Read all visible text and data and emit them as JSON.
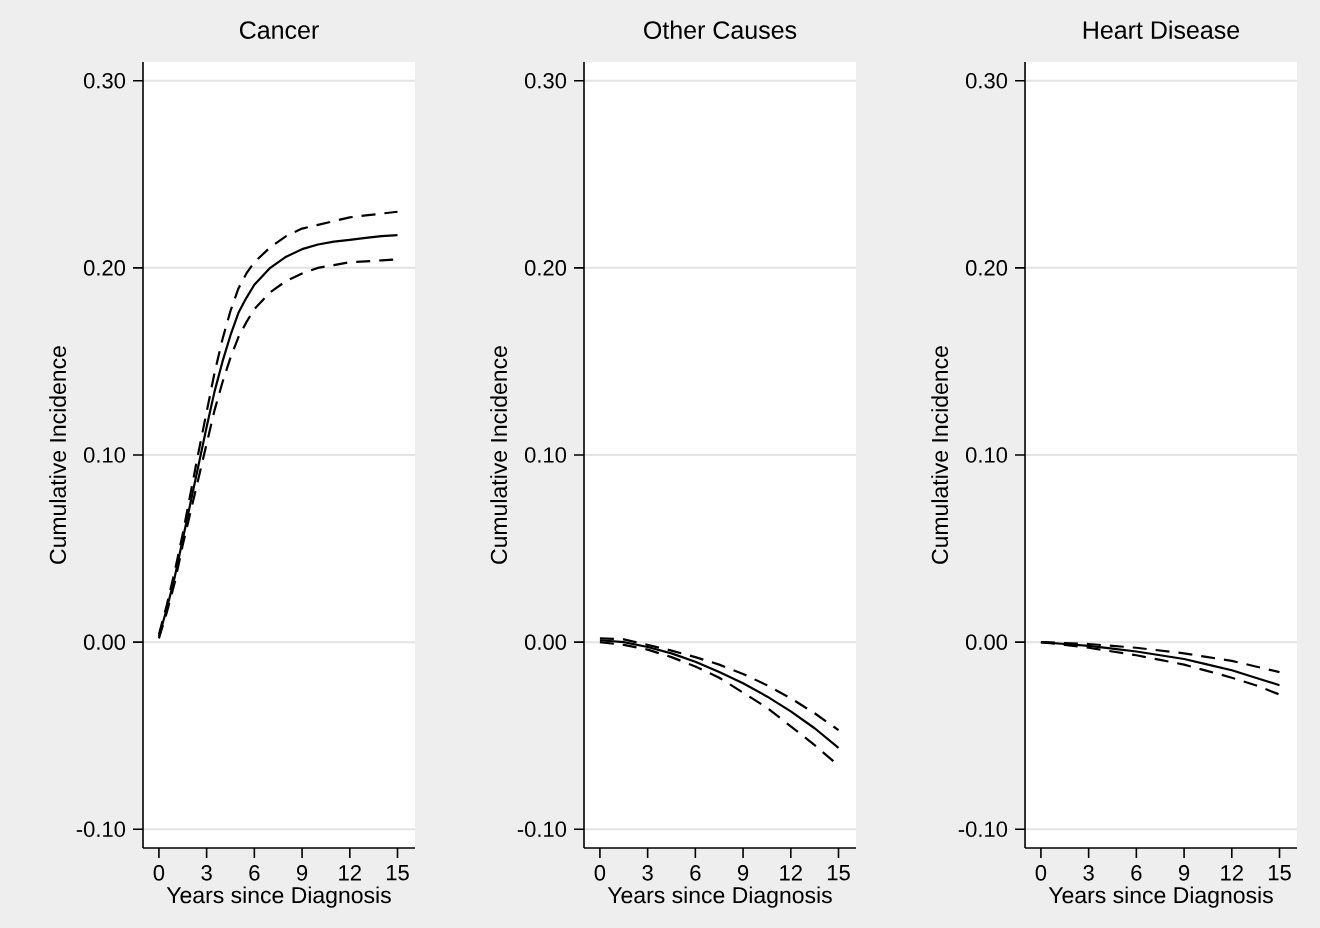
{
  "chart_data": [
    {
      "type": "line",
      "title": "Cancer",
      "xlabel": "Years since Diagnosis",
      "ylabel": "Cumulative Incidence",
      "grid": "y",
      "xlim": [
        -1,
        16.1
      ],
      "ylim": [
        -0.11,
        0.31
      ],
      "xticks": [
        0,
        3,
        6,
        9,
        12,
        15
      ],
      "yticks": [
        {
          "value": -0.1,
          "label": "-0.10"
        },
        {
          "value": 0,
          "label": "0.00"
        },
        {
          "value": 0.1,
          "label": "0.10"
        },
        {
          "value": 0.2,
          "label": "0.20"
        },
        {
          "value": 0.3,
          "label": "0.30"
        }
      ],
      "x": [
        0,
        0.5,
        1,
        1.5,
        2,
        2.5,
        3,
        3.5,
        4,
        4.5,
        5,
        5.5,
        6,
        7,
        8,
        9,
        10,
        11,
        12,
        13,
        14,
        15
      ],
      "series": [
        {
          "color": "#000000",
          "line_style": "solid",
          "values": [
            0.003,
            0.018,
            0.035,
            0.055,
            0.075,
            0.095,
            0.115,
            0.134,
            0.15,
            0.164,
            0.176,
            0.184,
            0.191,
            0.2,
            0.206,
            0.21,
            0.2125,
            0.214,
            0.215,
            0.216,
            0.217,
            0.2175
          ]
        },
        {
          "color": "#000000",
          "line_style": "dashed",
          "values": [
            0.004,
            0.02,
            0.038,
            0.058,
            0.08,
            0.102,
            0.123,
            0.144,
            0.162,
            0.177,
            0.189,
            0.197,
            0.203,
            0.211,
            0.217,
            0.221,
            0.223,
            0.225,
            0.227,
            0.228,
            0.229,
            0.23
          ]
        },
        {
          "color": "#000000",
          "line_style": "dashed",
          "values": [
            0.002,
            0.016,
            0.032,
            0.052,
            0.07,
            0.088,
            0.106,
            0.124,
            0.139,
            0.152,
            0.163,
            0.171,
            0.178,
            0.187,
            0.193,
            0.197,
            0.2,
            0.2015,
            0.203,
            0.2035,
            0.204,
            0.2045
          ]
        }
      ]
    },
    {
      "type": "line",
      "title": "Other Causes",
      "xlabel": "Years since Diagnosis",
      "ylabel": "Cumulative Incidence",
      "grid": "y",
      "xlim": [
        -1,
        16.1
      ],
      "ylim": [
        -0.11,
        0.31
      ],
      "xticks": [
        0,
        3,
        6,
        9,
        12,
        15
      ],
      "yticks": [
        {
          "value": -0.1,
          "label": "-0.10"
        },
        {
          "value": 0,
          "label": "0.00"
        },
        {
          "value": 0.1,
          "label": "0.10"
        },
        {
          "value": 0.2,
          "label": "0.20"
        },
        {
          "value": 0.3,
          "label": "0.30"
        }
      ],
      "x": [
        0,
        1.5,
        3,
        4.5,
        6,
        7.5,
        9,
        10.5,
        12,
        13.5,
        15
      ],
      "series": [
        {
          "color": "#000000",
          "line_style": "solid",
          "values": [
            0.001,
            0,
            -0.0026,
            -0.006,
            -0.0105,
            -0.016,
            -0.022,
            -0.029,
            -0.037,
            -0.046,
            -0.0565
          ]
        },
        {
          "color": "#000000",
          "line_style": "dashed",
          "values": [
            0.002,
            0.0015,
            -0.0015,
            -0.0045,
            -0.008,
            -0.012,
            -0.017,
            -0.023,
            -0.03,
            -0.038,
            -0.047
          ]
        },
        {
          "color": "#000000",
          "line_style": "dashed",
          "values": [
            0,
            -0.0015,
            -0.004,
            -0.008,
            -0.013,
            -0.019,
            -0.027,
            -0.035,
            -0.045,
            -0.055,
            -0.066
          ]
        }
      ]
    },
    {
      "type": "line",
      "title": "Heart Disease",
      "xlabel": "Years since Diagnosis",
      "ylabel": "Cumulative Incidence",
      "grid": "y",
      "xlim": [
        -1,
        16.1
      ],
      "ylim": [
        -0.11,
        0.31
      ],
      "xticks": [
        0,
        3,
        6,
        9,
        12,
        15
      ],
      "yticks": [
        {
          "value": -0.1,
          "label": "-0.10"
        },
        {
          "value": 0,
          "label": "0.00"
        },
        {
          "value": 0.1,
          "label": "0.10"
        },
        {
          "value": 0.2,
          "label": "0.20"
        },
        {
          "value": 0.3,
          "label": "0.30"
        }
      ],
      "x": [
        0,
        1.5,
        3,
        4.5,
        6,
        7.5,
        9,
        10.5,
        12,
        13.5,
        15
      ],
      "series": [
        {
          "color": "#000000",
          "line_style": "solid",
          "values": [
            0,
            -0.001,
            -0.002,
            -0.0035,
            -0.005,
            -0.007,
            -0.009,
            -0.012,
            -0.015,
            -0.019,
            -0.023
          ]
        },
        {
          "color": "#000000",
          "line_style": "dashed",
          "values": [
            0,
            -0.0005,
            -0.001,
            -0.002,
            -0.003,
            -0.0045,
            -0.006,
            -0.008,
            -0.01,
            -0.013,
            -0.016
          ]
        },
        {
          "color": "#000000",
          "line_style": "dashed",
          "values": [
            0,
            -0.0015,
            -0.003,
            -0.005,
            -0.007,
            -0.0095,
            -0.012,
            -0.0155,
            -0.019,
            -0.023,
            -0.028
          ]
        }
      ]
    }
  ]
}
